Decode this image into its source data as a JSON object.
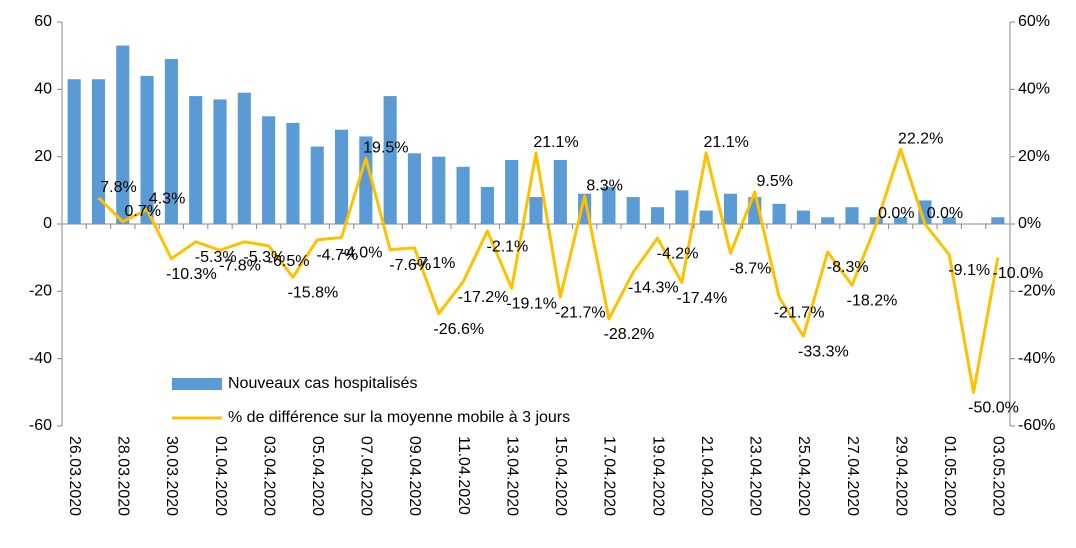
{
  "chart_data": {
    "type": "bar-line",
    "categories": [
      "26.03.2020",
      null,
      "28.03.2020",
      null,
      "30.03.2020",
      null,
      "01.04.2020",
      null,
      "03.04.2020",
      null,
      "05.04.2020",
      null,
      "07.04.2020",
      null,
      "09.04.2020",
      null,
      "11.04.2020",
      null,
      "13.04.2020",
      null,
      "15.04.2020",
      null,
      "17.04.2020",
      null,
      "19.04.2020",
      null,
      "21.04.2020",
      null,
      "23.04.2020",
      null,
      "25.04.2020",
      null,
      "27.04.2020",
      null,
      "29.04.2020",
      null,
      "01.05.2020",
      null,
      "03.05.2020"
    ],
    "series": [
      {
        "name": "Nouveaux cas hospitalisés",
        "type": "bar",
        "color": "#5b9bd5",
        "values": [
          43,
          43,
          53,
          44,
          49,
          38,
          37,
          39,
          32,
          30,
          23,
          28,
          26,
          38,
          21,
          20,
          17,
          11,
          19,
          8,
          19,
          9,
          11,
          8,
          5,
          10,
          4,
          9,
          8,
          6,
          4,
          2,
          5,
          2,
          2,
          7,
          2,
          0,
          2
        ]
      },
      {
        "name": "% de différence sur la  moyenne mobile à 3 jours",
        "type": "line",
        "axis": "y2",
        "color": "#ffc000",
        "values": [
          null,
          7.8,
          0.7,
          4.3,
          -10.3,
          -5.3,
          -7.8,
          -5.3,
          -6.5,
          -15.8,
          -4.7,
          -4.0,
          19.5,
          -7.6,
          -7.1,
          -26.6,
          -17.2,
          -2.1,
          -19.1,
          21.1,
          -21.7,
          8.3,
          -28.2,
          -14.3,
          -4.2,
          -17.4,
          21.1,
          -8.7,
          9.5,
          -21.7,
          -33.3,
          -8.3,
          -18.2,
          0.0,
          22.2,
          0.0,
          -9.1,
          -50.0,
          -10.0
        ],
        "value_labels": [
          null,
          "7.8%",
          "0.7%",
          "4.3%",
          "-10.3%",
          "-5.3%",
          "-7.8%",
          "-5.3%",
          "-6.5%",
          "-15.8%",
          "-4.7%",
          "-4.0%",
          "19.5%",
          "-7.6%",
          "-7.1%",
          "-26.6%",
          "-17.2%",
          "-2.1%",
          "-19.1%",
          "21.1%",
          "-21.7%",
          "8.3%",
          "-28.2%",
          "-14.3%",
          "-4.2%",
          "-17.4%",
          "21.1%",
          "-8.7%",
          "9.5%",
          "-21.7%",
          "-33.3%",
          "-8.3%",
          "-18.2%",
          "0.0%",
          "22.2%",
          "0.0%",
          "-9.1%",
          "-50.0%",
          "-10.0%"
        ]
      }
    ],
    "ylim": [
      -60,
      60
    ],
    "yticks": [
      -60,
      -40,
      -20,
      0,
      20,
      40,
      60
    ],
    "y2lim": [
      -60,
      60
    ],
    "y2ticks": [
      {
        "value": -60,
        "label": "-60%"
      },
      {
        "value": -40,
        "label": "-40%"
      },
      {
        "value": -20,
        "label": "-20%"
      },
      {
        "value": 0,
        "label": "0%"
      },
      {
        "value": 20,
        "label": "20%"
      },
      {
        "value": 40,
        "label": "40%"
      },
      {
        "value": 60,
        "label": "60%"
      }
    ],
    "legend": "lower-left"
  }
}
